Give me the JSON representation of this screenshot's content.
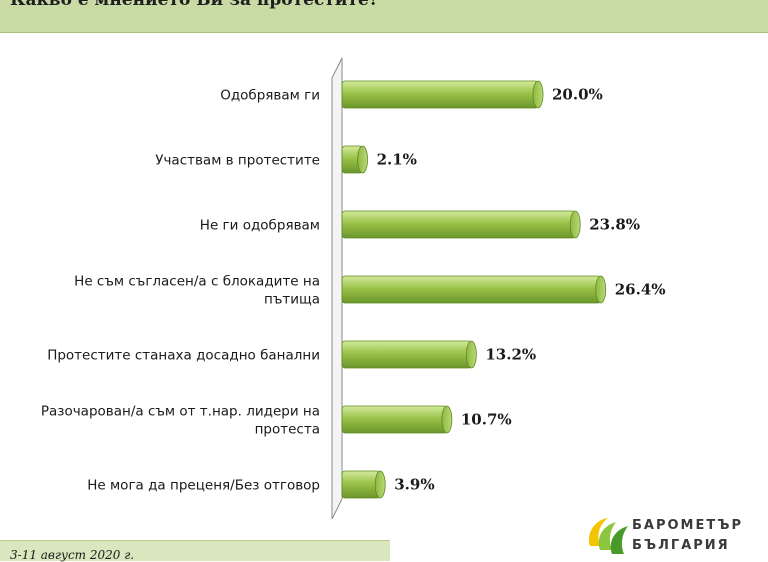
{
  "title": "Какво е мнението Ви за протестите?",
  "footer": "3-11 август 2020 г.",
  "logo": {
    "line1": "БАРОМЕТЪР",
    "line2": "БЪЛГАРИЯ",
    "colors": [
      "#f2c500",
      "#8cc63f",
      "#4a9a2a"
    ]
  },
  "colors": {
    "title_bg": "#c8dba4",
    "bar_fill": "#9bc34a",
    "bar_light": "#c9e38b",
    "bar_dark": "#6f9a2c",
    "footer_bg": "#d8e7bd"
  },
  "chart_data": {
    "type": "bar",
    "orientation": "horizontal",
    "title": "Какво е мнението Ви за протестите?",
    "categories": [
      [
        "Одобрявам ги"
      ],
      [
        "Участвам в протестите"
      ],
      [
        "Не ги одобрявам"
      ],
      [
        "Не съм съгласен/а с блокадите на",
        "пътища"
      ],
      [
        "Протестите станаха досадно банални"
      ],
      [
        "Разочарован/а съм от т.нар. лидери на",
        "протеста"
      ],
      [
        "Не мога да преценя/Без отговор"
      ]
    ],
    "values": [
      20.0,
      2.1,
      23.8,
      26.4,
      13.2,
      10.7,
      3.9
    ],
    "value_labels": [
      "20.0%",
      "2.1%",
      "23.8%",
      "26.4%",
      "13.2%",
      "10.7%",
      "3.9%"
    ],
    "unit": "%",
    "xlim": [
      0,
      30
    ],
    "grid": false,
    "legend": "none"
  }
}
